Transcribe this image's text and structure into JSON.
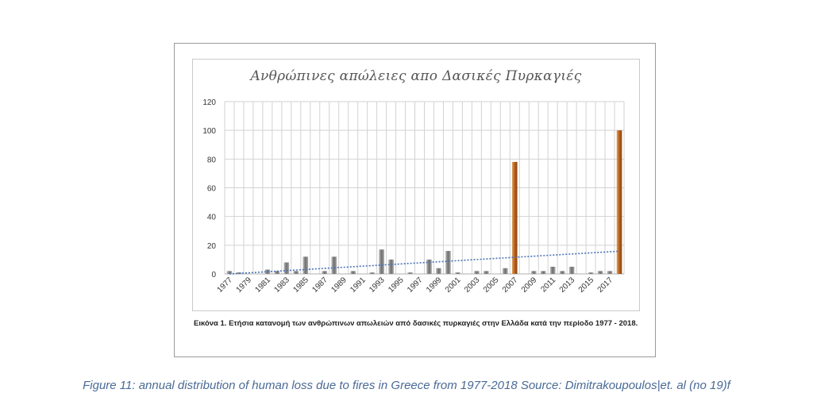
{
  "chart_data": {
    "type": "bar",
    "title": "Ανθρώπινες απώλειες απο Δασικές Πυρκαγιές",
    "xlabel": "",
    "ylabel": "",
    "ylim": [
      0,
      120
    ],
    "yticks": [
      "0",
      "20",
      "40",
      "60",
      "80",
      "100",
      "120"
    ],
    "grid": true,
    "trendline": true,
    "x": [
      "1977",
      "1978",
      "1979",
      "1980",
      "1981",
      "1982",
      "1983",
      "1984",
      "1985",
      "1986",
      "1987",
      "1988",
      "1989",
      "1990",
      "1991",
      "1992",
      "1993",
      "1994",
      "1995",
      "1996",
      "1997",
      "1998",
      "1999",
      "2000",
      "2001",
      "2002",
      "2003",
      "2004",
      "2005",
      "2006",
      "2007",
      "2008",
      "2009",
      "2010",
      "2011",
      "2012",
      "2013",
      "2014",
      "2015",
      "2016",
      "2017",
      "2018"
    ],
    "xtick_labels": [
      "1977",
      "1979",
      "1981",
      "1983",
      "1985",
      "1987",
      "1989",
      "1991",
      "1993",
      "1995",
      "1997",
      "1999",
      "2001",
      "2003",
      "2005",
      "2007",
      "2009",
      "2011",
      "2013",
      "2015",
      "2017"
    ],
    "values": [
      2,
      1,
      0,
      0,
      3,
      2,
      8,
      2,
      12,
      0,
      2,
      12,
      0,
      2,
      0,
      1,
      17,
      10,
      0,
      1,
      0,
      10,
      4,
      16,
      1,
      0,
      2,
      2,
      0,
      4,
      78,
      0,
      2,
      2,
      5,
      2,
      5,
      0,
      1,
      2,
      2,
      100
    ],
    "highlight_indices": [
      30,
      41
    ],
    "colors": {
      "bar": "#7c7c7c",
      "highlight": "#bf6a1e",
      "trend": "#4a72b8",
      "grid": "#d2d2d2"
    }
  },
  "caption": "Εικόνα 1.  Ετήσια κατανομή των ανθρώπινων απωλειών από δασικές πυρκαγιές στην Ελλάδα κατά την περίοδο 1977 - 2018.",
  "figure_caption": "Figure 11: annual distribution of human loss due to fires in Greece from 1977-2018  Source: Dimitrakoupoulos|et. al (no 19)f"
}
